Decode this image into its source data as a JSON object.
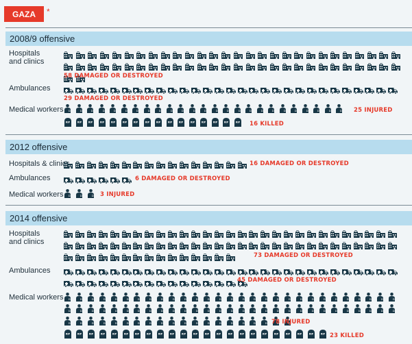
{
  "header": {
    "badge": "GAZA",
    "asterisk": "*"
  },
  "chart_data": {
    "type": "table",
    "sections": [
      {
        "title": "2008/9 offensive",
        "rows": [
          {
            "label": "Hospitals and clinics",
            "label_lines": [
              "Hospitals",
              "and clinics"
            ],
            "counts": [
              {
                "type": "damaged",
                "value": 58,
                "text": "58 DAMAGED OR DESTROYED"
              }
            ]
          },
          {
            "label": "Ambulances",
            "label_lines": [
              "Ambulances"
            ],
            "counts": [
              {
                "type": "damaged",
                "value": 29,
                "text": "29 DAMAGED OR DESTROYED"
              }
            ]
          },
          {
            "label": "Medical workers",
            "label_lines": [
              "Medical workers"
            ],
            "counts": [
              {
                "type": "injured",
                "value": 25,
                "text": "25 INJURED"
              },
              {
                "type": "killed",
                "value": 16,
                "text": "16 KILLED"
              }
            ]
          }
        ]
      },
      {
        "title": "2012 offensive",
        "rows": [
          {
            "label": "Hospitals & clinics",
            "label_lines": [
              "Hospitals & clinics"
            ],
            "counts": [
              {
                "type": "damaged",
                "value": 16,
                "text": "16 DAMAGED OR DESTROYED"
              }
            ]
          },
          {
            "label": "Ambulances",
            "label_lines": [
              "Ambulances"
            ],
            "counts": [
              {
                "type": "damaged",
                "value": 6,
                "text": "6 DAMAGED OR DESTROYED"
              }
            ]
          },
          {
            "label": "Medical workers",
            "label_lines": [
              "Medical workers"
            ],
            "counts": [
              {
                "type": "injured",
                "value": 3,
                "text": "3 INJURED"
              }
            ]
          }
        ]
      },
      {
        "title": "2014 offensive",
        "rows": [
          {
            "label": "Hospitals and clinics",
            "label_lines": [
              "Hospitals",
              "and clinics"
            ],
            "counts": [
              {
                "type": "damaged",
                "value": 73,
                "text": "73 DAMAGED OR DESTROYED"
              }
            ]
          },
          {
            "label": "Ambulances",
            "label_lines": [
              "Ambulances"
            ],
            "counts": [
              {
                "type": "damaged",
                "value": 45,
                "text": "45 DAMAGED OR DESTROYED"
              }
            ]
          },
          {
            "label": "Medical workers",
            "label_lines": [
              "Medical workers"
            ],
            "counts": [
              {
                "type": "injured",
                "value": 78,
                "text": "78 INJURED"
              },
              {
                "type": "killed",
                "value": 23,
                "text": "23 KILLED"
              }
            ]
          }
        ]
      }
    ]
  },
  "colors": {
    "icon": "#183746",
    "accent": "#e63a2a",
    "band": "#b7dcee",
    "background": "#f1f5f7"
  },
  "icons": {
    "damaged": "hospital-icon",
    "ambulance": "ambulance-icon",
    "injured": "medical-worker-icon",
    "killed": "gravestone-icon"
  }
}
